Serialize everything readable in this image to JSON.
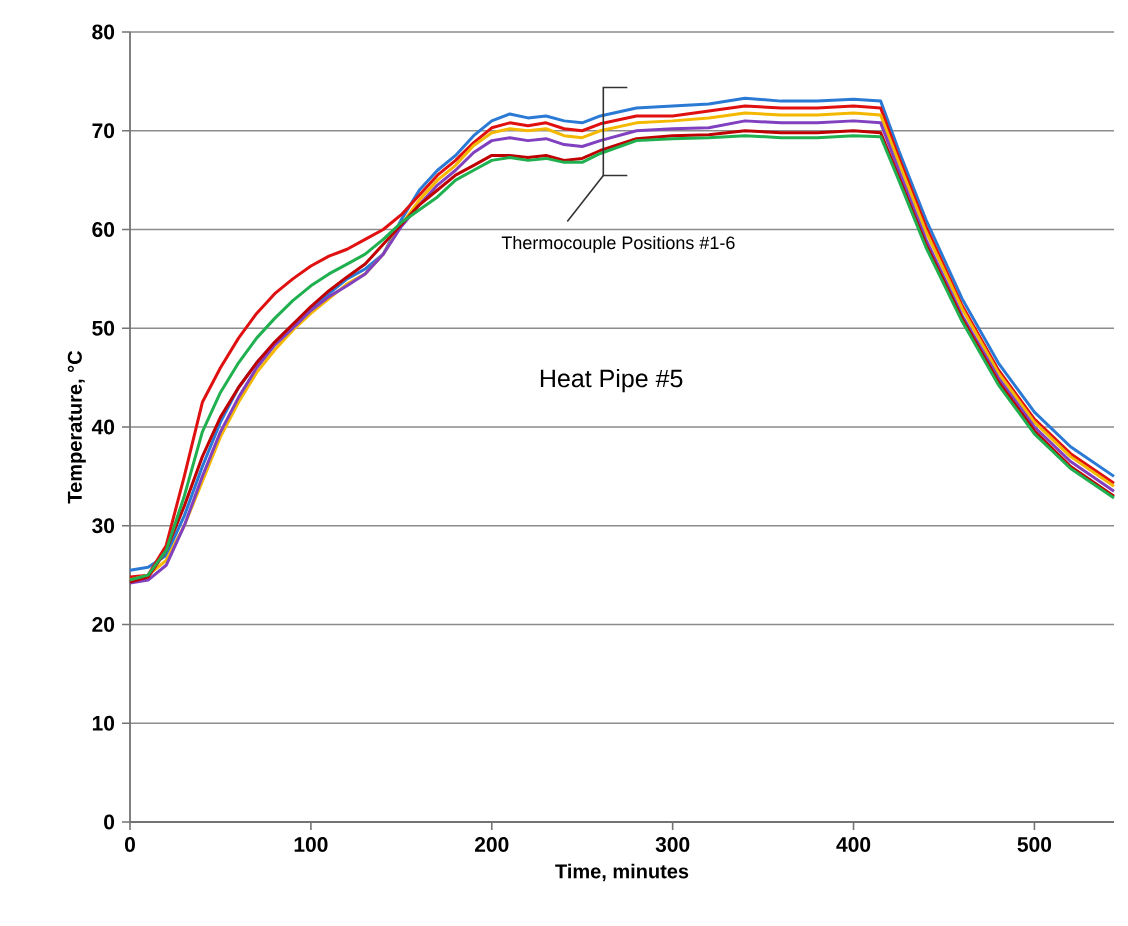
{
  "chart_data": {
    "type": "line",
    "xlabel": "Time, minutes",
    "ylabel": "Temperature, °C",
    "annotations": [
      "Thermocouple Positions #1-6",
      "Heat Pipe #5"
    ],
    "xlim": [
      0,
      544
    ],
    "xticks": [
      0,
      100,
      200,
      300,
      400,
      500
    ],
    "ylim": [
      0,
      80
    ],
    "yticks": [
      0,
      10,
      20,
      30,
      40,
      50,
      60,
      70,
      80
    ],
    "grid": "y",
    "marker": "none",
    "line_style": "solid",
    "x": [
      0,
      10,
      20,
      30,
      40,
      50,
      60,
      70,
      80,
      90,
      100,
      110,
      120,
      130,
      140,
      150,
      160,
      170,
      180,
      190,
      200,
      210,
      220,
      230,
      240,
      250,
      260,
      280,
      300,
      320,
      340,
      360,
      380,
      400,
      415,
      425,
      440,
      460,
      480,
      500,
      520,
      544
    ],
    "series": [
      {
        "color": "#2a7ad5",
        "values": [
          25.5,
          25.8,
          27,
          31,
          36,
          40.5,
          44,
          46.5,
          48.5,
          50.3,
          52,
          53.5,
          55,
          56,
          57.5,
          61,
          64,
          66,
          67.5,
          69.5,
          71,
          71.7,
          71.3,
          71.5,
          71,
          70.8,
          71.5,
          72.3,
          72.5,
          72.7,
          73.3,
          73,
          73,
          73.2,
          73,
          68,
          61,
          53,
          46.5,
          41.5,
          38,
          35
        ]
      },
      {
        "color": "#e01010",
        "values": [
          24.8,
          25,
          28,
          35,
          42.5,
          46,
          49,
          51.5,
          53.5,
          55,
          56.3,
          57.3,
          58,
          59,
          60,
          61.5,
          63.5,
          65.5,
          67,
          68.8,
          70.3,
          70.8,
          70.5,
          70.8,
          70.2,
          70,
          70.7,
          71.5,
          71.5,
          72,
          72.5,
          72.3,
          72.3,
          72.5,
          72.3,
          67.3,
          60.3,
          52.3,
          45.8,
          40.8,
          37.3,
          34.3
        ]
      },
      {
        "color": "#f5b800",
        "values": [
          24.5,
          25,
          26.5,
          30,
          34.5,
          39,
          42.5,
          45.5,
          47.8,
          49.8,
          51.5,
          53,
          54.5,
          55.5,
          57.5,
          60.5,
          63,
          65,
          66.5,
          68.5,
          69.8,
          70.2,
          70,
          70.2,
          69.5,
          69.3,
          70,
          70.8,
          71,
          71.3,
          71.8,
          71.6,
          71.6,
          71.8,
          71.6,
          66.8,
          59.8,
          52,
          45.5,
          40.5,
          37,
          34
        ]
      },
      {
        "color": "#8040c0",
        "values": [
          24.2,
          24.5,
          26,
          30,
          35,
          39.5,
          43,
          46,
          48.3,
          50,
          51.8,
          53.2,
          54.3,
          55.5,
          57.5,
          60.3,
          62.5,
          64.5,
          66,
          67.8,
          69,
          69.3,
          69,
          69.2,
          68.6,
          68.4,
          69,
          70,
          70.2,
          70.3,
          71,
          70.8,
          70.8,
          71,
          70.8,
          66,
          59,
          51.3,
          45,
          40,
          36.5,
          33.5
        ]
      },
      {
        "color": "#c00000",
        "values": [
          24.3,
          24.8,
          27.5,
          32,
          37,
          41,
          44,
          46.5,
          48.6,
          50.4,
          52.2,
          53.8,
          55.2,
          56.5,
          58.5,
          60.5,
          62.5,
          64,
          65.5,
          66.5,
          67.5,
          67.5,
          67.3,
          67.5,
          67,
          67.2,
          68,
          69.2,
          69.5,
          69.6,
          70,
          69.8,
          69.8,
          70,
          69.8,
          65.3,
          58.5,
          51,
          44.6,
          39.6,
          36,
          33
        ]
      },
      {
        "color": "#20b050",
        "values": [
          24.5,
          25,
          27.5,
          33,
          39.5,
          43.5,
          46.5,
          49,
          51,
          52.8,
          54.3,
          55.5,
          56.5,
          57.5,
          59,
          60.7,
          62,
          63.3,
          65,
          66,
          67,
          67.3,
          67,
          67.2,
          66.8,
          66.8,
          67.7,
          69,
          69.2,
          69.3,
          69.5,
          69.3,
          69.3,
          69.5,
          69.4,
          65,
          58.2,
          50.7,
          44.3,
          39.3,
          35.8,
          32.8
        ]
      }
    ]
  }
}
